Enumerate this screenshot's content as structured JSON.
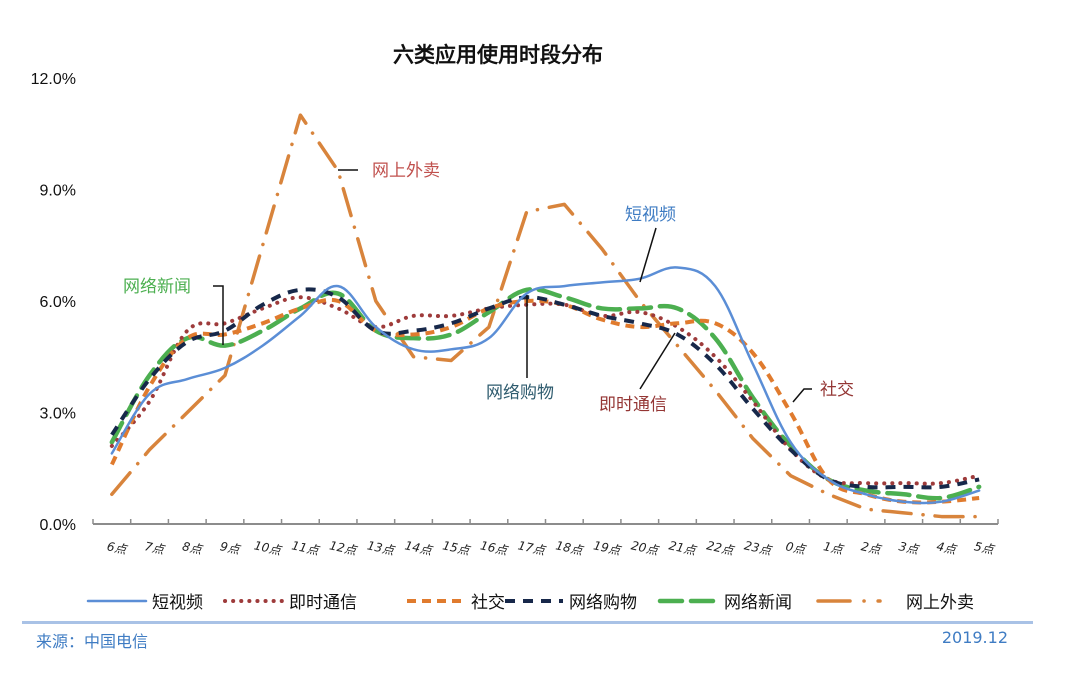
{
  "title": "六类应用使用时段分布",
  "footer": {
    "source": "来源：中国电信",
    "date": "2019.12"
  },
  "colors": {
    "short_video": "#5b8ed6",
    "im": "#9e3b3b",
    "social": "#e07b2e",
    "shopping": "#17284a",
    "news": "#4caf50",
    "takeaway": "#d8843c",
    "footer_blue": "#3f7cc3",
    "divider": "#a9c2e6"
  },
  "annotations": [
    {
      "text": "网上外卖",
      "color": "#c0504d"
    },
    {
      "text": "网络新闻",
      "color": "#4caf50"
    },
    {
      "text": "短视频",
      "color": "#3f7cc3"
    },
    {
      "text": "网络购物",
      "color": "#2e5b6e"
    },
    {
      "text": "即时通信",
      "color": "#943634"
    },
    {
      "text": "社交",
      "color": "#943634"
    }
  ],
  "chart_data": {
    "type": "line",
    "title": "六类应用使用时段分布",
    "xlabel": "",
    "ylabel": "",
    "ylim": [
      0,
      12
    ],
    "yticks": [
      "0.0%",
      "3.0%",
      "6.0%",
      "9.0%",
      "12.0%"
    ],
    "grid": false,
    "legend_position": "bottom",
    "categories": [
      "6点",
      "7点",
      "8点",
      "9点",
      "10点",
      "11点",
      "12点",
      "13点",
      "14点",
      "15点",
      "16点",
      "17点",
      "18点",
      "19点",
      "20点",
      "21点",
      "22点",
      "23点",
      "0点",
      "1点",
      "2点",
      "3点",
      "4点",
      "5点"
    ],
    "series": [
      {
        "name": "短视频",
        "style": "solid",
        "color": "#5b8ed6",
        "values": [
          1.9,
          3.5,
          3.9,
          4.2,
          4.8,
          5.6,
          6.4,
          5.3,
          4.7,
          4.7,
          5.0,
          6.2,
          6.4,
          6.5,
          6.6,
          6.9,
          6.4,
          4.3,
          2.2,
          1.2,
          0.8,
          0.6,
          0.6,
          0.9
        ]
      },
      {
        "name": "即时通信",
        "style": "dotted",
        "color": "#9e3b3b",
        "values": [
          2.1,
          3.3,
          5.2,
          5.4,
          5.8,
          6.1,
          5.8,
          5.3,
          5.6,
          5.6,
          5.8,
          5.9,
          5.9,
          5.6,
          5.7,
          5.3,
          4.5,
          3.3,
          2.0,
          1.2,
          1.1,
          1.1,
          1.1,
          1.3
        ]
      },
      {
        "name": "社交",
        "style": "dashed",
        "color": "#e07b2e",
        "values": [
          1.6,
          3.7,
          5.0,
          5.1,
          5.4,
          5.8,
          6.0,
          5.2,
          5.1,
          5.3,
          5.8,
          6.0,
          5.9,
          5.5,
          5.3,
          5.4,
          5.4,
          4.6,
          3.0,
          1.2,
          0.8,
          0.6,
          0.6,
          0.7
        ]
      },
      {
        "name": "网络购物",
        "style": "dashed",
        "color": "#17284a",
        "values": [
          2.4,
          3.9,
          4.9,
          5.2,
          5.9,
          6.3,
          6.1,
          5.2,
          5.2,
          5.4,
          5.8,
          6.1,
          5.9,
          5.6,
          5.4,
          5.1,
          4.3,
          3.1,
          2.0,
          1.2,
          1.0,
          1.0,
          1.0,
          1.2
        ]
      },
      {
        "name": "网络新闻",
        "style": "long-dash",
        "color": "#4caf50",
        "values": [
          2.2,
          4.0,
          5.0,
          4.8,
          5.2,
          5.8,
          6.2,
          5.2,
          5.0,
          5.1,
          5.7,
          6.3,
          6.1,
          5.8,
          5.8,
          5.8,
          5.0,
          3.4,
          2.1,
          1.2,
          0.9,
          0.8,
          0.7,
          1.0
        ]
      },
      {
        "name": "网上外卖",
        "style": "dash-dot",
        "color": "#d8843c",
        "values": [
          0.8,
          2.0,
          3.0,
          4.0,
          7.5,
          11.0,
          9.5,
          6.0,
          4.5,
          4.4,
          5.3,
          8.4,
          8.6,
          7.4,
          6.0,
          4.8,
          3.6,
          2.3,
          1.3,
          0.8,
          0.4,
          0.3,
          0.2,
          0.2
        ]
      }
    ]
  }
}
